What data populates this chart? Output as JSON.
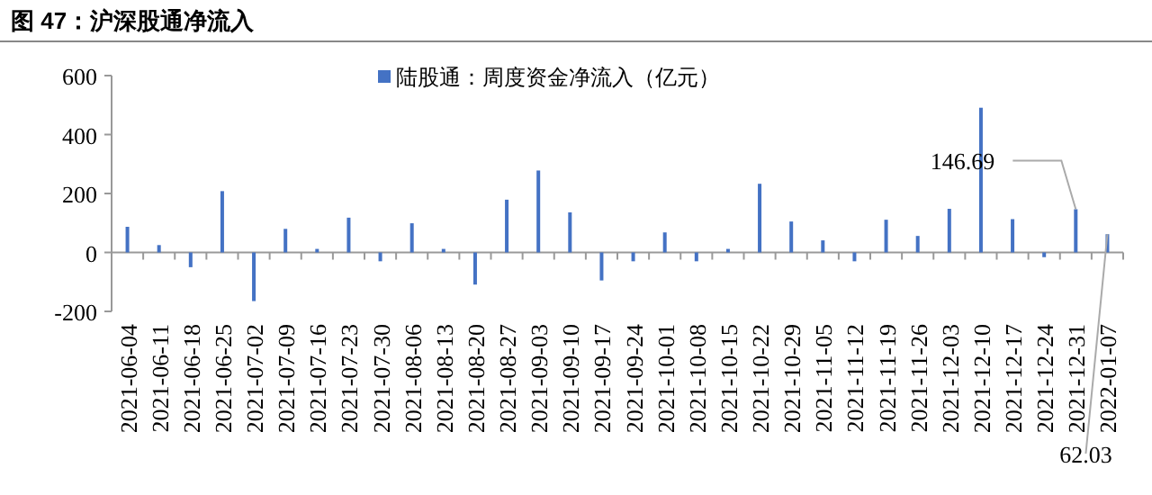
{
  "chart_data": {
    "type": "bar",
    "title": "图 47：沪深股通净流入",
    "categories": [
      "2021-06-04",
      "2021-06-11",
      "2021-06-18",
      "2021-06-25",
      "2021-07-02",
      "2021-07-09",
      "2021-07-16",
      "2021-07-23",
      "2021-07-30",
      "2021-08-06",
      "2021-08-13",
      "2021-08-20",
      "2021-08-27",
      "2021-09-03",
      "2021-09-10",
      "2021-09-17",
      "2021-09-24",
      "2021-10-01",
      "2021-10-08",
      "2021-10-15",
      "2021-10-22",
      "2021-10-29",
      "2021-11-05",
      "2021-11-12",
      "2021-11-19",
      "2021-11-26",
      "2021-12-03",
      "2021-12-10",
      "2021-12-17",
      "2021-12-24",
      "2021-12-31",
      "2022-01-07"
    ],
    "series": [
      {
        "name": "陆股通：周度资金净流入（亿元）",
        "color": "#4472c4",
        "values": [
          87,
          25,
          -50,
          208,
          -165,
          80,
          12,
          118,
          -30,
          99,
          12,
          -109,
          179,
          278,
          136,
          -95,
          -30,
          68,
          -30,
          12,
          233,
          105,
          41,
          -30,
          111,
          56,
          148,
          491,
          113,
          -16,
          146.69,
          62.03
        ],
        "value_labels": [
          null,
          null,
          null,
          null,
          null,
          null,
          null,
          null,
          null,
          null,
          null,
          null,
          null,
          null,
          null,
          null,
          null,
          null,
          null,
          null,
          null,
          null,
          null,
          null,
          null,
          null,
          null,
          null,
          null,
          null,
          "146.69",
          "62.03"
        ]
      }
    ],
    "ylim": [
      -200,
      600
    ],
    "yticks": [
      -200,
      0,
      200,
      400,
      600
    ],
    "legend": "top"
  }
}
